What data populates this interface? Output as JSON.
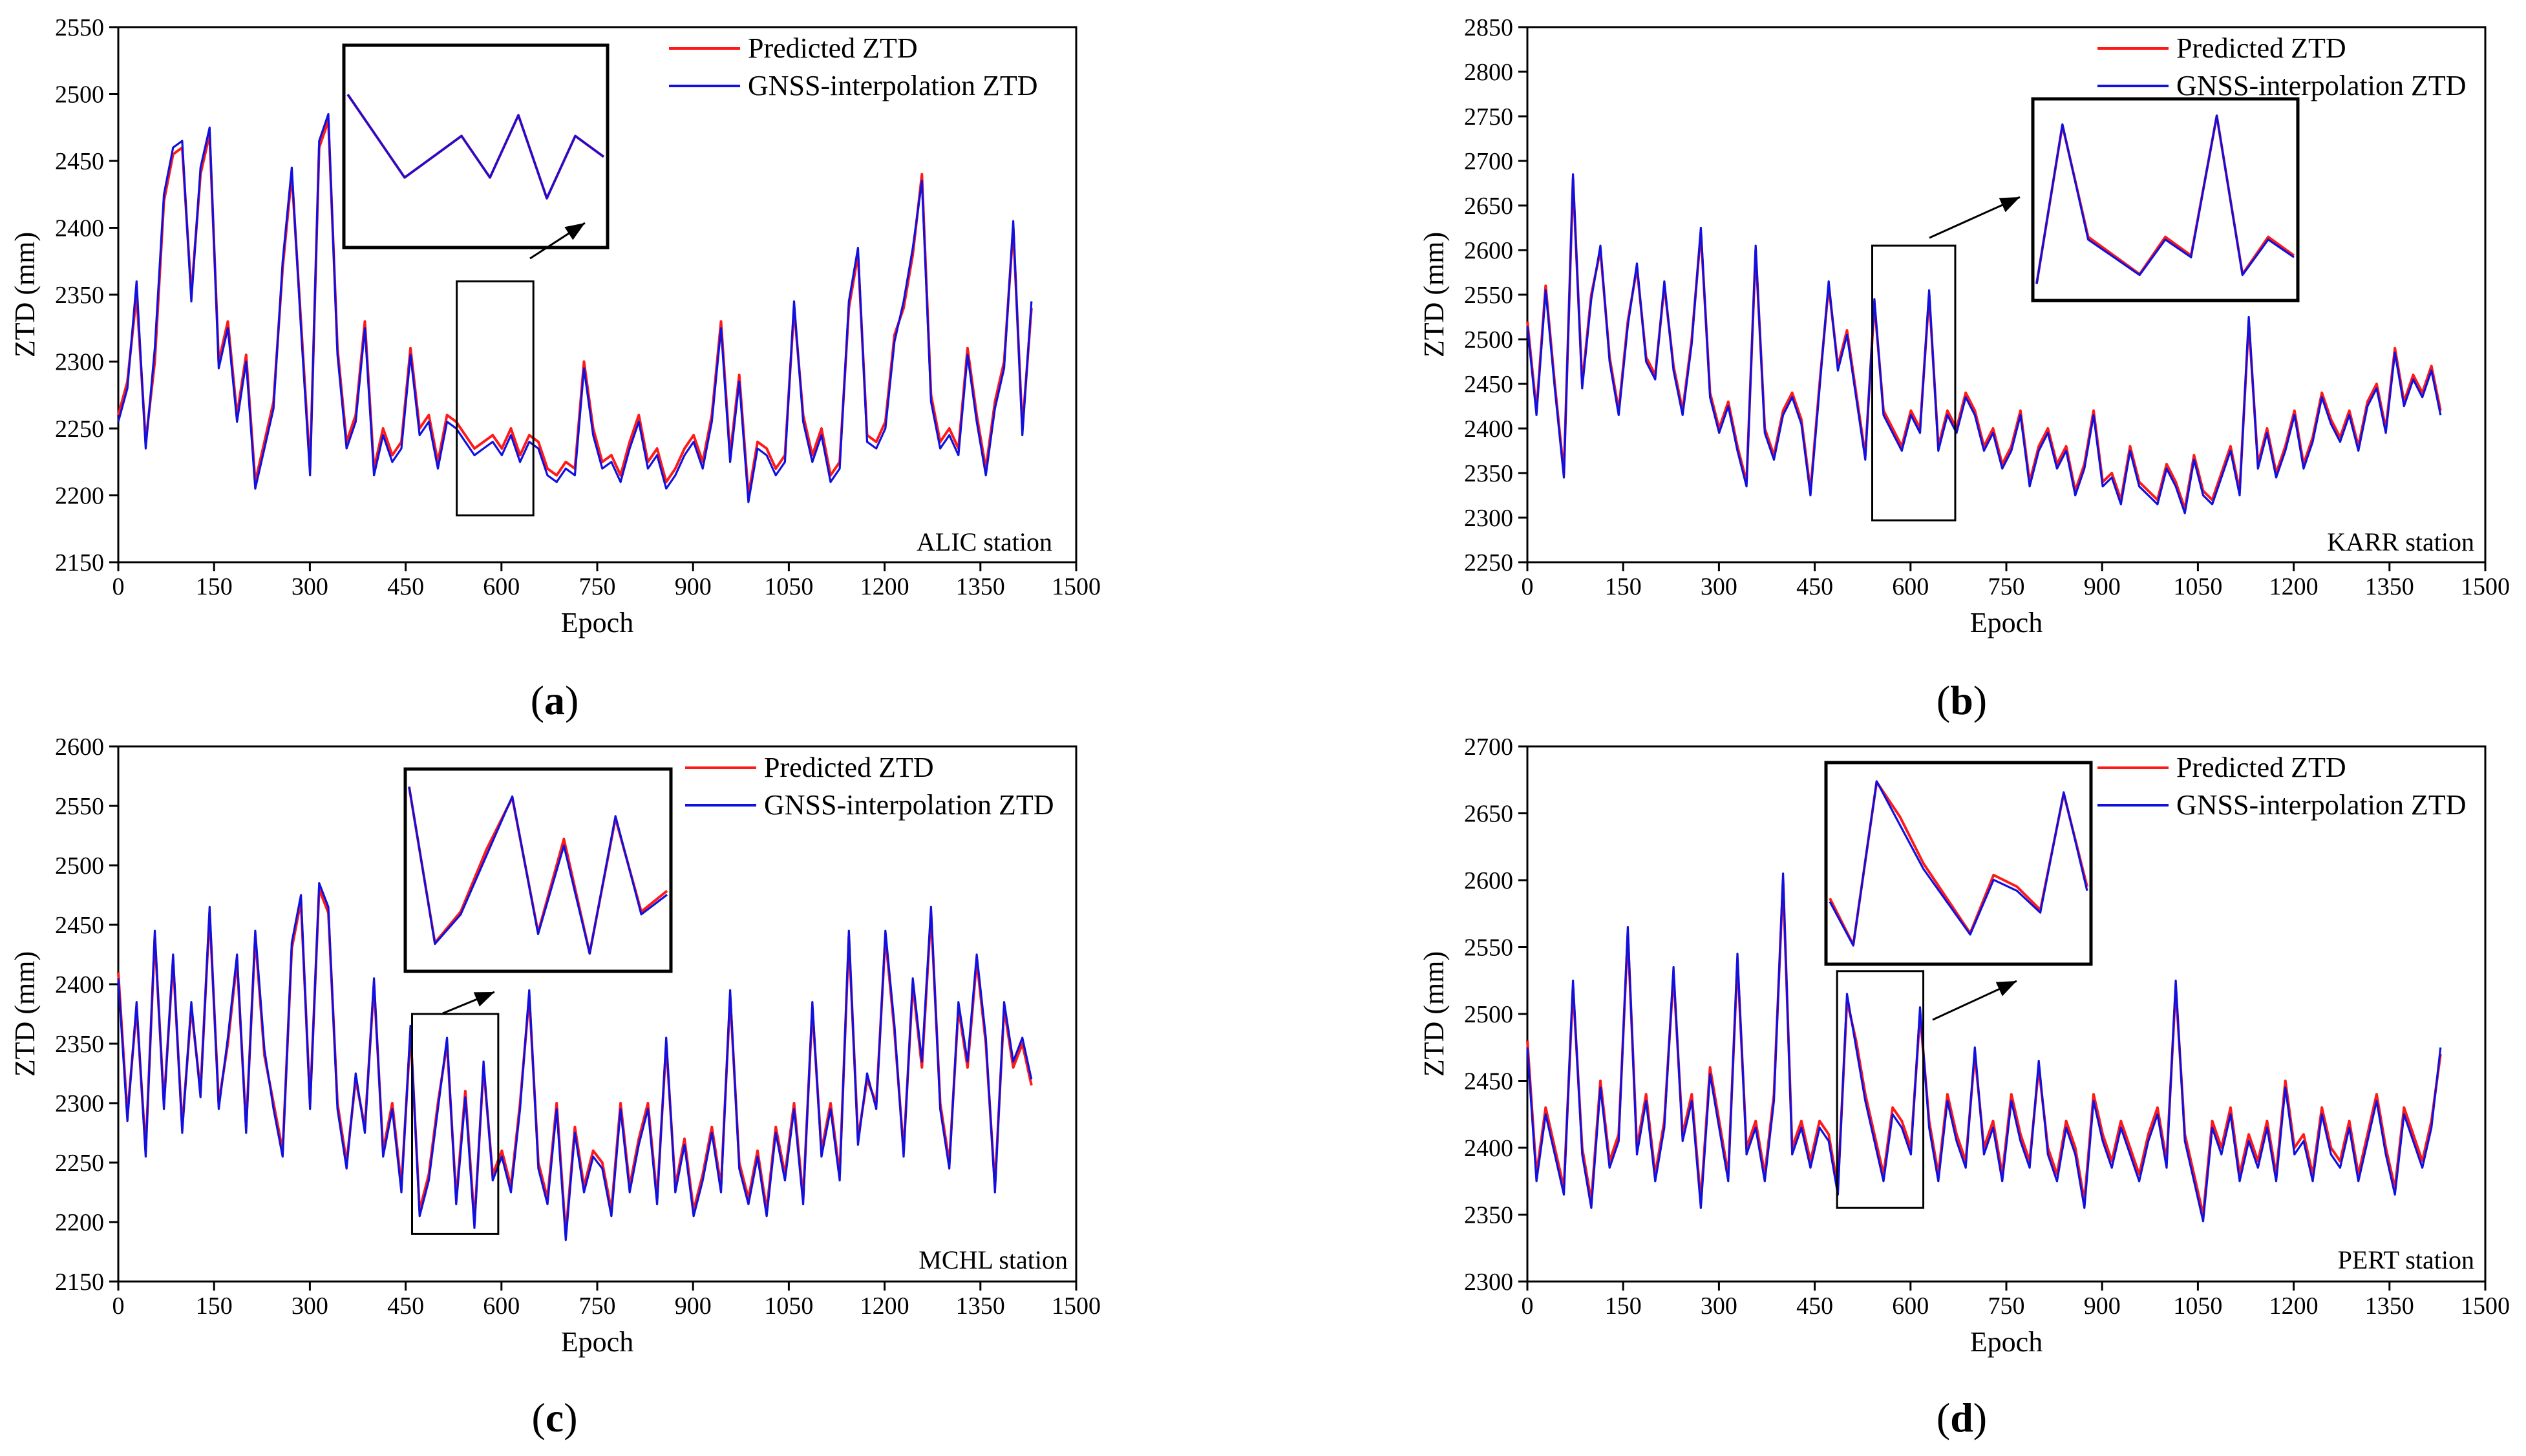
{
  "figure": {
    "description_panels": [
      "a",
      "b",
      "c",
      "d"
    ]
  },
  "legend": {
    "predicted": "Predicted ZTD",
    "gnss": "GNSS-interpolation ZTD"
  },
  "colors": {
    "predicted": "#ff1a1a",
    "gnss": "#1010e0",
    "axis": "#000000"
  },
  "chart_data": [
    {
      "type": "line",
      "caption": "(a)",
      "station": "ALIC station",
      "xlabel": "Epoch",
      "ylabel": "ZTD (mm)",
      "xlim": [
        0,
        1500
      ],
      "ylim": [
        2150,
        2550
      ],
      "xticks": [
        0,
        150,
        300,
        450,
        600,
        750,
        900,
        1050,
        1200,
        1350,
        1500
      ],
      "yticks": [
        2150,
        2200,
        2250,
        2300,
        2350,
        2400,
        2450,
        2500,
        2550
      ],
      "series": [
        {
          "name": "Predicted ZTD",
          "values": [
            2260,
            2285,
            2350,
            2240,
            2300,
            2420,
            2455,
            2460,
            2350,
            2440,
            2470,
            2300,
            2330,
            2260,
            2305,
            2210,
            2240,
            2270,
            2370,
            2440,
            2330,
            2220,
            2460,
            2480,
            2310,
            2240,
            2260,
            2330,
            2220,
            2250,
            2230,
            2240,
            2310,
            2250,
            2260,
            2225,
            2260,
            2255,
            2245,
            2235,
            2240,
            2245,
            2235,
            2250,
            2230,
            2245,
            2240,
            2220,
            2215,
            2225,
            2220,
            2300,
            2250,
            2225,
            2230,
            2215,
            2240,
            2260,
            2225,
            2235,
            2210,
            2220,
            2235,
            2245,
            2225,
            2260,
            2330,
            2230,
            2290,
            2200,
            2240,
            2235,
            2220,
            2230,
            2340,
            2260,
            2230,
            2250,
            2215,
            2225,
            2340,
            2380,
            2245,
            2240,
            2255,
            2320,
            2340,
            2380,
            2440,
            2275,
            2240,
            2250,
            2235,
            2310,
            2260,
            2220,
            2270,
            2300,
            2400,
            2250,
            2340
          ]
        },
        {
          "name": "GNSS-interpolation ZTD",
          "values": [
            2255,
            2280,
            2360,
            2235,
            2310,
            2425,
            2460,
            2465,
            2345,
            2445,
            2475,
            2295,
            2325,
            2255,
            2300,
            2205,
            2235,
            2265,
            2375,
            2445,
            2325,
            2215,
            2465,
            2485,
            2305,
            2235,
            2255,
            2325,
            2215,
            2245,
            2225,
            2235,
            2305,
            2245,
            2255,
            2220,
            2255,
            2250,
            2240,
            2230,
            2235,
            2240,
            2230,
            2245,
            2225,
            2240,
            2235,
            2215,
            2210,
            2220,
            2215,
            2295,
            2245,
            2220,
            2225,
            2210,
            2235,
            2255,
            2220,
            2230,
            2205,
            2215,
            2230,
            2240,
            2220,
            2255,
            2325,
            2225,
            2285,
            2195,
            2235,
            2230,
            2215,
            2225,
            2345,
            2255,
            2225,
            2245,
            2210,
            2220,
            2345,
            2385,
            2240,
            2235,
            2250,
            2315,
            2345,
            2385,
            2435,
            2270,
            2235,
            2245,
            2230,
            2305,
            2255,
            2215,
            2265,
            2295,
            2405,
            2245,
            2345
          ]
        }
      ]
    },
    {
      "type": "line",
      "caption": "(b)",
      "station": "KARR station",
      "xlabel": "Epoch",
      "ylabel": "ZTD (mm)",
      "xlim": [
        0,
        1500
      ],
      "ylim": [
        2250,
        2850
      ],
      "xticks": [
        0,
        150,
        300,
        450,
        600,
        750,
        900,
        1050,
        1200,
        1350,
        1500
      ],
      "yticks": [
        2250,
        2300,
        2350,
        2400,
        2450,
        2500,
        2550,
        2600,
        2650,
        2700,
        2750,
        2800,
        2850
      ],
      "series": [
        {
          "name": "Predicted ZTD",
          "values": [
            2520,
            2420,
            2560,
            2450,
            2350,
            2680,
            2450,
            2550,
            2600,
            2480,
            2420,
            2520,
            2580,
            2480,
            2460,
            2560,
            2470,
            2420,
            2500,
            2620,
            2440,
            2400,
            2430,
            2380,
            2340,
            2600,
            2400,
            2370,
            2420,
            2440,
            2410,
            2330,
            2450,
            2560,
            2470,
            2510,
            2440,
            2370,
            2540,
            2420,
            2400,
            2380,
            2420,
            2400,
            2550,
            2380,
            2420,
            2400,
            2440,
            2420,
            2380,
            2400,
            2360,
            2380,
            2420,
            2340,
            2380,
            2400,
            2360,
            2380,
            2330,
            2360,
            2420,
            2340,
            2350,
            2320,
            2380,
            2340,
            2330,
            2320,
            2360,
            2340,
            2310,
            2370,
            2330,
            2320,
            2350,
            2380,
            2330,
            2520,
            2360,
            2400,
            2350,
            2380,
            2420,
            2360,
            2390,
            2440,
            2410,
            2390,
            2420,
            2380,
            2430,
            2450,
            2400,
            2490,
            2430,
            2460,
            2440,
            2470,
            2420
          ]
        },
        {
          "name": "GNSS-interpolation ZTD",
          "values": [
            2515,
            2415,
            2555,
            2445,
            2345,
            2685,
            2445,
            2545,
            2605,
            2475,
            2415,
            2515,
            2585,
            2475,
            2455,
            2565,
            2465,
            2415,
            2495,
            2625,
            2435,
            2395,
            2425,
            2375,
            2335,
            2605,
            2395,
            2365,
            2415,
            2435,
            2405,
            2325,
            2445,
            2565,
            2465,
            2505,
            2435,
            2365,
            2545,
            2415,
            2395,
            2375,
            2415,
            2395,
            2555,
            2375,
            2415,
            2395,
            2435,
            2415,
            2375,
            2395,
            2355,
            2375,
            2415,
            2335,
            2375,
            2395,
            2355,
            2375,
            2325,
            2355,
            2415,
            2335,
            2345,
            2315,
            2375,
            2335,
            2325,
            2315,
            2355,
            2335,
            2305,
            2365,
            2325,
            2315,
            2345,
            2375,
            2325,
            2525,
            2355,
            2395,
            2345,
            2375,
            2415,
            2355,
            2385,
            2435,
            2405,
            2385,
            2415,
            2375,
            2425,
            2445,
            2395,
            2485,
            2425,
            2455,
            2435,
            2465,
            2415
          ]
        }
      ]
    },
    {
      "type": "line",
      "caption": "(c)",
      "station": "MCHL station",
      "xlabel": "Epoch",
      "ylabel": "ZTD (mm)",
      "xlim": [
        0,
        1500
      ],
      "ylim": [
        2150,
        2600
      ],
      "xticks": [
        0,
        150,
        300,
        450,
        600,
        750,
        900,
        1050,
        1200,
        1350,
        1500
      ],
      "yticks": [
        2150,
        2200,
        2250,
        2300,
        2350,
        2400,
        2450,
        2500,
        2550,
        2600
      ],
      "series": [
        {
          "name": "Predicted ZTD",
          "values": [
            2410,
            2290,
            2380,
            2260,
            2440,
            2300,
            2420,
            2280,
            2380,
            2310,
            2460,
            2300,
            2350,
            2420,
            2280,
            2440,
            2340,
            2300,
            2260,
            2430,
            2470,
            2300,
            2480,
            2460,
            2300,
            2250,
            2320,
            2280,
            2400,
            2260,
            2300,
            2230,
            2360,
            2210,
            2240,
            2300,
            2350,
            2220,
            2310,
            2200,
            2330,
            2240,
            2260,
            2230,
            2300,
            2390,
            2250,
            2220,
            2300,
            2190,
            2280,
            2230,
            2260,
            2250,
            2210,
            2300,
            2230,
            2270,
            2300,
            2220,
            2350,
            2230,
            2270,
            2210,
            2240,
            2280,
            2230,
            2390,
            2250,
            2220,
            2260,
            2210,
            2280,
            2240,
            2300,
            2220,
            2380,
            2260,
            2300,
            2240,
            2440,
            2270,
            2320,
            2300,
            2440,
            2360,
            2260,
            2400,
            2330,
            2460,
            2300,
            2250,
            2380,
            2330,
            2420,
            2350,
            2230,
            2380,
            2330,
            2350,
            2315
          ]
        },
        {
          "name": "GNSS-interpolation ZTD",
          "values": [
            2405,
            2285,
            2385,
            2255,
            2445,
            2295,
            2425,
            2275,
            2385,
            2305,
            2465,
            2295,
            2355,
            2425,
            2275,
            2445,
            2345,
            2295,
            2255,
            2435,
            2475,
            2295,
            2485,
            2465,
            2295,
            2245,
            2325,
            2275,
            2405,
            2255,
            2295,
            2225,
            2365,
            2205,
            2235,
            2295,
            2355,
            2215,
            2305,
            2195,
            2335,
            2235,
            2255,
            2225,
            2295,
            2395,
            2245,
            2215,
            2295,
            2185,
            2275,
            2225,
            2255,
            2245,
            2205,
            2295,
            2225,
            2265,
            2295,
            2215,
            2355,
            2225,
            2265,
            2205,
            2235,
            2275,
            2225,
            2395,
            2245,
            2215,
            2255,
            2205,
            2275,
            2235,
            2295,
            2215,
            2385,
            2255,
            2295,
            2235,
            2445,
            2265,
            2325,
            2295,
            2445,
            2365,
            2255,
            2405,
            2335,
            2465,
            2295,
            2245,
            2385,
            2335,
            2425,
            2355,
            2225,
            2385,
            2335,
            2355,
            2320
          ]
        }
      ]
    },
    {
      "type": "line",
      "caption": "(d)",
      "station": "PERT station",
      "xlabel": "Epoch",
      "ylabel": "ZTD (mm)",
      "xlim": [
        0,
        1500
      ],
      "ylim": [
        2300,
        2700
      ],
      "xticks": [
        0,
        150,
        300,
        450,
        600,
        750,
        900,
        1050,
        1200,
        1350,
        1500
      ],
      "yticks": [
        2300,
        2350,
        2400,
        2450,
        2500,
        2550,
        2600,
        2650,
        2700
      ],
      "series": [
        {
          "name": "Predicted ZTD",
          "values": [
            2480,
            2380,
            2430,
            2400,
            2370,
            2520,
            2400,
            2360,
            2450,
            2390,
            2410,
            2560,
            2400,
            2440,
            2380,
            2420,
            2530,
            2410,
            2440,
            2360,
            2460,
            2420,
            2380,
            2540,
            2400,
            2420,
            2380,
            2440,
            2600,
            2400,
            2420,
            2390,
            2420,
            2410,
            2370,
            2510,
            2480,
            2440,
            2410,
            2380,
            2430,
            2420,
            2400,
            2500,
            2420,
            2380,
            2440,
            2410,
            2390,
            2470,
            2400,
            2420,
            2380,
            2440,
            2410,
            2390,
            2460,
            2400,
            2380,
            2420,
            2400,
            2360,
            2440,
            2410,
            2390,
            2420,
            2400,
            2380,
            2410,
            2430,
            2390,
            2520,
            2410,
            2380,
            2350,
            2420,
            2400,
            2430,
            2380,
            2410,
            2390,
            2420,
            2380,
            2450,
            2400,
            2410,
            2380,
            2430,
            2400,
            2390,
            2420,
            2380,
            2410,
            2440,
            2400,
            2370,
            2430,
            2410,
            2390,
            2420,
            2470
          ]
        },
        {
          "name": "GNSS-interpolation ZTD",
          "values": [
            2475,
            2375,
            2425,
            2395,
            2365,
            2525,
            2395,
            2355,
            2445,
            2385,
            2405,
            2565,
            2395,
            2435,
            2375,
            2415,
            2535,
            2405,
            2435,
            2355,
            2455,
            2415,
            2375,
            2545,
            2395,
            2415,
            2375,
            2435,
            2605,
            2395,
            2415,
            2385,
            2415,
            2405,
            2365,
            2515,
            2475,
            2435,
            2405,
            2375,
            2425,
            2415,
            2395,
            2505,
            2415,
            2375,
            2435,
            2405,
            2385,
            2475,
            2395,
            2415,
            2375,
            2435,
            2405,
            2385,
            2465,
            2395,
            2375,
            2415,
            2395,
            2355,
            2435,
            2405,
            2385,
            2415,
            2395,
            2375,
            2405,
            2425,
            2385,
            2525,
            2405,
            2375,
            2345,
            2415,
            2395,
            2425,
            2375,
            2405,
            2385,
            2415,
            2375,
            2445,
            2395,
            2405,
            2375,
            2425,
            2395,
            2385,
            2415,
            2375,
            2405,
            2435,
            2395,
            2365,
            2425,
            2405,
            2385,
            2415,
            2475
          ]
        }
      ]
    }
  ]
}
